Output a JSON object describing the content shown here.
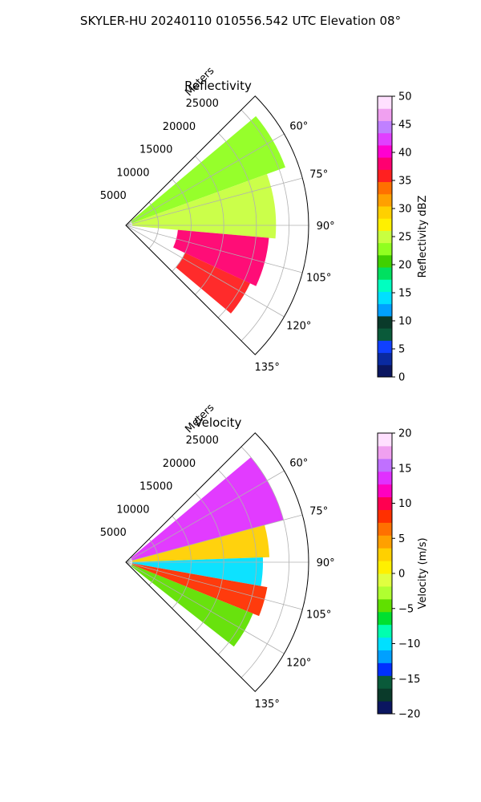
{
  "figure": {
    "suptitle": "SKYLER-HU  20240110  010556.542 UTC Elevation 08°"
  },
  "chart_data": [
    {
      "type": "heatmap",
      "subtype": "polar-sector (PPI)",
      "title": "Reflectivity",
      "radial_label": "Meters",
      "radial_ticks": [
        5000,
        10000,
        15000,
        20000,
        25000
      ],
      "radial_tick_labels": [
        "5000",
        "10000",
        "15000",
        "20000",
        "25000"
      ],
      "angle_range_deg": [
        45,
        135
      ],
      "angle_ticks": [
        60,
        75,
        90,
        105,
        120,
        135
      ],
      "angle_tick_labels": [
        "60°",
        "75°",
        "90°",
        "105°",
        "120°",
        "135°"
      ],
      "grid": true,
      "colorbar": {
        "label": "Reflectivity dBZ",
        "range": [
          0,
          50
        ],
        "ticks": [
          0,
          5,
          10,
          15,
          20,
          25,
          30,
          35,
          40,
          45,
          50
        ],
        "tick_labels": [
          "0",
          "5",
          "10",
          "15",
          "20",
          "25",
          "30",
          "35",
          "40",
          "45",
          "50"
        ],
        "colors": [
          "#0b1660",
          "#0a2aa0",
          "#1040ff",
          "#0a5a3a",
          "#0a3a2a",
          "#00a0ff",
          "#00e0ff",
          "#00ffc0",
          "#00e060",
          "#40d000",
          "#90ff20",
          "#c8ff40",
          "#fff000",
          "#ffd000",
          "#ffa000",
          "#ff7000",
          "#ff2020",
          "#ff0070",
          "#ff00d0",
          "#e040ff",
          "#c080ff",
          "#f0a0f0",
          "#ffe0ff"
        ]
      },
      "summary_bands": [
        {
          "angle_range": [
            50,
            70
          ],
          "range_m": [
            1000,
            26000
          ],
          "value_dbz": 22
        },
        {
          "angle_range": [
            70,
            95
          ],
          "range_m": [
            1000,
            23000
          ],
          "value_dbz": 26
        },
        {
          "angle_range": [
            95,
            115
          ],
          "range_m": [
            8000,
            22000
          ],
          "value_dbz": 38
        },
        {
          "angle_range": [
            115,
            130
          ],
          "range_m": [
            10000,
            21000
          ],
          "value_dbz": 36
        }
      ]
    },
    {
      "type": "heatmap",
      "subtype": "polar-sector (PPI)",
      "title": "Velocity",
      "radial_label": "Meters",
      "radial_ticks": [
        5000,
        10000,
        15000,
        20000,
        25000
      ],
      "radial_tick_labels": [
        "5000",
        "10000",
        "15000",
        "20000",
        "25000"
      ],
      "angle_range_deg": [
        45,
        135
      ],
      "angle_ticks": [
        60,
        75,
        90,
        105,
        120,
        135
      ],
      "angle_tick_labels": [
        "60°",
        "75°",
        "90°",
        "105°",
        "120°",
        "135°"
      ],
      "grid": true,
      "colorbar": {
        "label": "Velocity (m/s)",
        "range": [
          -20,
          20
        ],
        "ticks": [
          -20,
          -15,
          -10,
          -5,
          0,
          5,
          10,
          15,
          20
        ],
        "tick_labels": [
          "−20",
          "−15",
          "−10",
          "−5",
          "0",
          "5",
          "10",
          "15",
          "20"
        ],
        "colors": [
          "#0b1660",
          "#0a3a2a",
          "#0a5a3a",
          "#0030ff",
          "#00a0ff",
          "#00e0ff",
          "#00ffb0",
          "#00e030",
          "#60e000",
          "#b0ff30",
          "#e0ff40",
          "#fff000",
          "#ffd000",
          "#ffa000",
          "#ff7000",
          "#ff3000",
          "#ff0050",
          "#ff00c0",
          "#e030ff",
          "#c070ff",
          "#f0a0f0",
          "#ffe0ff"
        ]
      },
      "summary_bands": [
        {
          "angle_range": [
            50,
            75
          ],
          "range_m": [
            1000,
            25000
          ],
          "value_ms": 13
        },
        {
          "angle_range": [
            75,
            88
          ],
          "range_m": [
            1000,
            22000
          ],
          "value_ms": 2
        },
        {
          "angle_range": [
            88,
            100
          ],
          "range_m": [
            1000,
            21000
          ],
          "value_ms": -10
        },
        {
          "angle_range": [
            100,
            112
          ],
          "range_m": [
            1000,
            22000
          ],
          "value_ms": 9
        },
        {
          "angle_range": [
            112,
            128
          ],
          "range_m": [
            1000,
            21000
          ],
          "value_ms": -4
        }
      ]
    }
  ]
}
